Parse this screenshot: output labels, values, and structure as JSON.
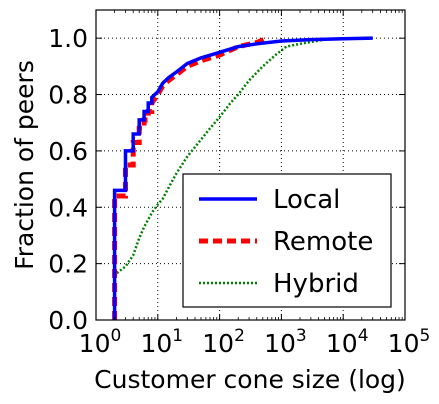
{
  "chart_data": {
    "type": "line",
    "title": "",
    "xlabel": "Customer cone size (log)",
    "ylabel": "Fraction of peers",
    "xscale": "log",
    "xlim": [
      1,
      100000
    ],
    "ylim": [
      0.0,
      1.1
    ],
    "grid": true,
    "legend_position": "bottom-right",
    "x_ticks": [
      {
        "base": "10",
        "exp": "0"
      },
      {
        "base": "10",
        "exp": "1"
      },
      {
        "base": "10",
        "exp": "2"
      },
      {
        "base": "10",
        "exp": "3"
      },
      {
        "base": "10",
        "exp": "4"
      },
      {
        "base": "10",
        "exp": "5"
      }
    ],
    "y_ticks": [
      "0.0",
      "0.2",
      "0.4",
      "0.6",
      "0.8",
      "1.0"
    ],
    "series": [
      {
        "name": "Local",
        "color": "#0000ff",
        "style": "solid",
        "points": [
          [
            2,
            0
          ],
          [
            2,
            0.46
          ],
          [
            3,
            0.46
          ],
          [
            3,
            0.6
          ],
          [
            4,
            0.6
          ],
          [
            4,
            0.66
          ],
          [
            5,
            0.66
          ],
          [
            5,
            0.71
          ],
          [
            6,
            0.71
          ],
          [
            6,
            0.74
          ],
          [
            7,
            0.74
          ],
          [
            7,
            0.77
          ],
          [
            8,
            0.77
          ],
          [
            8,
            0.79
          ],
          [
            10,
            0.81
          ],
          [
            12,
            0.84
          ],
          [
            15,
            0.86
          ],
          [
            20,
            0.88
          ],
          [
            30,
            0.91
          ],
          [
            50,
            0.93
          ],
          [
            100,
            0.95
          ],
          [
            200,
            0.97
          ],
          [
            400,
            0.98
          ],
          [
            1000,
            0.99
          ],
          [
            3000,
            0.995
          ],
          [
            10000,
            0.998
          ],
          [
            30000,
            1.0
          ]
        ]
      },
      {
        "name": "Remote",
        "color": "#ff0000",
        "style": "dashed",
        "points": [
          [
            2,
            0
          ],
          [
            2,
            0.44
          ],
          [
            3,
            0.44
          ],
          [
            3,
            0.55
          ],
          [
            4,
            0.55
          ],
          [
            4,
            0.63
          ],
          [
            5,
            0.63
          ],
          [
            5,
            0.68
          ],
          [
            6,
            0.68
          ],
          [
            6,
            0.71
          ],
          [
            7,
            0.71
          ],
          [
            7,
            0.74
          ],
          [
            8,
            0.74
          ],
          [
            8,
            0.77
          ],
          [
            10,
            0.8
          ],
          [
            12,
            0.83
          ],
          [
            15,
            0.85
          ],
          [
            20,
            0.87
          ],
          [
            30,
            0.9
          ],
          [
            50,
            0.92
          ],
          [
            100,
            0.94
          ],
          [
            200,
            0.97
          ],
          [
            400,
            0.985
          ],
          [
            600,
            1.0
          ]
        ]
      },
      {
        "name": "Hybrid",
        "color": "#008000",
        "style": "dotted",
        "points": [
          [
            2,
            0
          ],
          [
            2,
            0.16
          ],
          [
            3,
            0.19
          ],
          [
            4,
            0.23
          ],
          [
            5,
            0.29
          ],
          [
            6,
            0.33
          ],
          [
            8,
            0.38
          ],
          [
            10,
            0.41
          ],
          [
            12,
            0.43
          ],
          [
            15,
            0.47
          ],
          [
            20,
            0.52
          ],
          [
            30,
            0.58
          ],
          [
            50,
            0.64
          ],
          [
            70,
            0.68
          ],
          [
            100,
            0.72
          ],
          [
            150,
            0.77
          ],
          [
            200,
            0.8
          ],
          [
            300,
            0.85
          ],
          [
            500,
            0.9
          ],
          [
            800,
            0.94
          ],
          [
            1200,
            0.97
          ],
          [
            2000,
            0.98
          ],
          [
            5000,
            0.995
          ],
          [
            10000,
            1.0
          ]
        ]
      }
    ]
  }
}
